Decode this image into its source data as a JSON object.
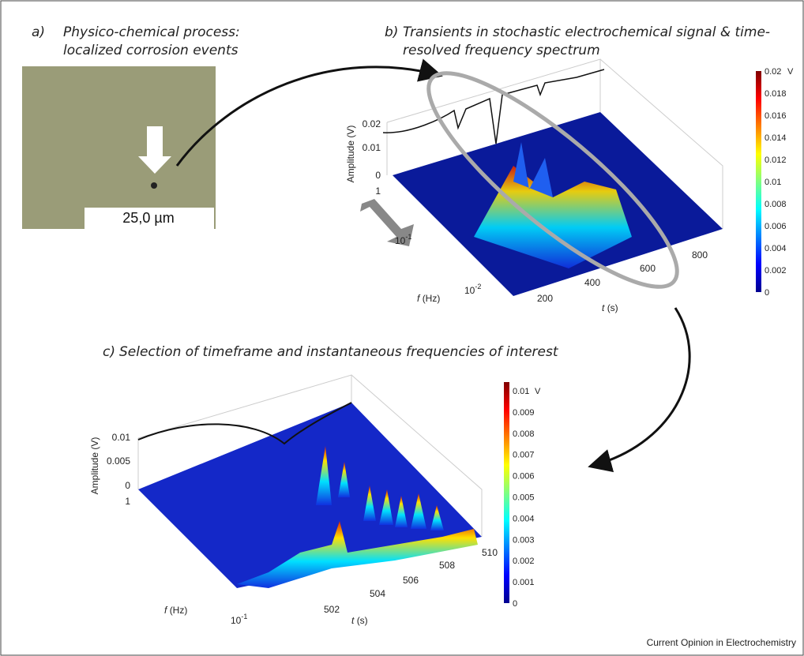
{
  "panel_a": {
    "label": "a)",
    "title": [
      "Physico-chemical process:",
      "localized corrosion events"
    ],
    "scale_bar": "25,0 µm"
  },
  "panel_b": {
    "label": "b)",
    "title": [
      "Transients in stochastic electrochemical signal & time-",
      "resolved frequency spectrum"
    ],
    "amplitude_label": "Amplitude (V)",
    "amplitude_ticks": [
      "0.02",
      "0.01",
      "0"
    ],
    "f_symbol": "f",
    "f_unit": "(Hz)",
    "f_ticks": [
      "1",
      "10",
      "-1",
      "10",
      "-2"
    ],
    "t_symbol": "t",
    "t_unit": "(s)",
    "t_ticks": [
      "200",
      "400",
      "600",
      "800"
    ],
    "colorbar_unit": "V",
    "colorbar_ticks": [
      "0.02",
      "0.018",
      "0.016",
      "0.014",
      "0.012",
      "0.01",
      "0.008",
      "0.006",
      "0.004",
      "0.002",
      "0"
    ]
  },
  "panel_c": {
    "label": "c)",
    "title": "Selection of timeframe and instantaneous frequencies of interest",
    "amplitude_label": "Amplitude (V)",
    "amplitude_ticks": [
      "0.01",
      "0.005",
      "0"
    ],
    "f_symbol": "f",
    "f_unit": "(Hz)",
    "f_ticks": [
      "1",
      "10",
      "-1"
    ],
    "t_symbol": "t",
    "t_unit": "(s)",
    "t_ticks": [
      "502",
      "504",
      "506",
      "508",
      "510"
    ],
    "colorbar_unit": "V",
    "colorbar_ticks": [
      "0.01",
      "0.009",
      "0.008",
      "0.007",
      "0.006",
      "0.005",
      "0.004",
      "0.003",
      "0.002",
      "0.001",
      "0"
    ]
  },
  "footer": "Current Opinion in Electrochemistry"
}
